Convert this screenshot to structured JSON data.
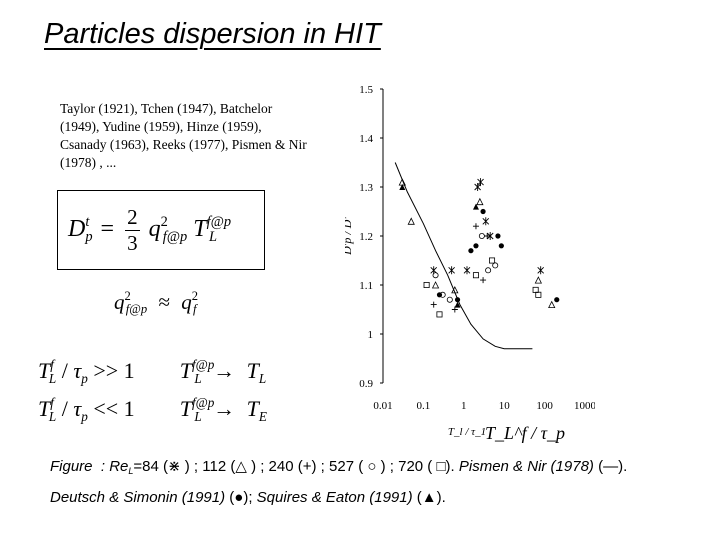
{
  "slide": {
    "title": "Particles dispersion in HIT",
    "references": "Taylor (1921), Tchen (1947), Batchelor (1949), Yudine (1959), Hinze (1959), Csanady (1963), Reeks (1977), Pismen & Nir (1978) , ...",
    "formulas": {
      "main": {
        "lhs_base": "D",
        "lhs_sup": "t",
        "lhs_sub": "p",
        "equals": "=",
        "num": "2",
        "den": "3",
        "q": "q",
        "q_sup": "2",
        "q_sub": "f@p",
        "T": "T",
        "T_sup": "f@p",
        "T_sub": "L"
      },
      "approx": {
        "lhs": "q",
        "lhs_sup": "2",
        "lhs_sub": "f@p",
        "op": "≈",
        "rhs": "q",
        "rhs_sup": "2",
        "rhs_sub": "f"
      },
      "limits": [
        {
          "left": "T",
          "left_sup": "f",
          "left_sub": "L",
          "slash": "/",
          "tau": "τ",
          "tau_sub": "p",
          "rel": ">> 1",
          "arrow_lhs": "T",
          "arrow_lhs_sup": "f@p",
          "arrow_lhs_sub": "L",
          "arrow": "→",
          "rhs": "T",
          "rhs_sub": "L"
        },
        {
          "left": "T",
          "left_sup": "f",
          "left_sub": "L",
          "slash": "/",
          "tau": "τ",
          "tau_sub": "p",
          "rel": "<< 1",
          "arrow_lhs": "T",
          "arrow_lhs_sup": "f@p",
          "arrow_lhs_sub": "L",
          "arrow": "→",
          "rhs": "T",
          "rhs_sub": "E"
        }
      ]
    },
    "caption": {
      "line1": {
        "figure": "Figure",
        "part1": ": Re",
        "part1_sub": "L",
        "part1_rest": "=84 (",
        "sym_star": "⋇",
        "part2": ") ; 112 (",
        "sym_triangle": "△",
        "part3": ") ; 240 (+) ; 527 (",
        "sym_circle": "○",
        "part4": ") ; 720 (",
        "sym_square": "□",
        "part5": ").",
        "ref1": "Pismen & Nir (1978)",
        "part6": "(—)."
      },
      "line2": {
        "ref2": "Deutsch & Simonin (1991)",
        "part7": "(",
        "sym_dot": "●",
        "part8": ");",
        "ref3": "Squires & Eaton (1991)",
        "part9": "(",
        "sym_filled_triangle": "▲",
        "part10": ")."
      }
    }
  },
  "chart_data": {
    "type": "scatter",
    "x_scale": "log",
    "xlim": [
      0.01,
      1000
    ],
    "ylim": [
      0.9,
      1.5
    ],
    "x_ticks": [
      "0.01",
      "0.1",
      "1",
      "10",
      "100",
      "1000"
    ],
    "y_ticks": [
      "0.9",
      "1",
      "1.1",
      "1.2",
      "1.3",
      "1.4",
      "1.5"
    ],
    "ylabel": "D'p / D'",
    "xlabel": "T_L^f / τ_p",
    "xlabel_small": "T_l / τ_1",
    "series": [
      {
        "name": "Pismen & Nir (1978)",
        "marker": "line",
        "points": [
          [
            0.02,
            1.35
          ],
          [
            0.04,
            1.29
          ],
          [
            0.1,
            1.225
          ],
          [
            0.2,
            1.17
          ],
          [
            0.4,
            1.12
          ],
          [
            0.8,
            1.06
          ],
          [
            1.5,
            1.02
          ],
          [
            3,
            0.99
          ],
          [
            6,
            0.975
          ],
          [
            10,
            0.97
          ],
          [
            50,
            0.97
          ]
        ]
      },
      {
        "name": "ReL=84",
        "marker": "star",
        "points": [
          [
            0.18,
            1.13
          ],
          [
            0.5,
            1.13
          ],
          [
            1.2,
            1.13
          ],
          [
            2.2,
            1.3
          ],
          [
            2.6,
            1.31
          ],
          [
            3.5,
            1.23
          ],
          [
            4.5,
            1.2
          ],
          [
            80,
            1.13
          ]
        ]
      },
      {
        "name": "ReL=112",
        "marker": "triangle",
        "points": [
          [
            0.03,
            1.31
          ],
          [
            0.05,
            1.23
          ],
          [
            0.2,
            1.1
          ],
          [
            0.6,
            1.09
          ],
          [
            2.5,
            1.27
          ],
          [
            70,
            1.11
          ],
          [
            150,
            1.06
          ]
        ]
      },
      {
        "name": "ReL=240",
        "marker": "plus",
        "points": [
          [
            0.18,
            1.06
          ],
          [
            0.6,
            1.05
          ],
          [
            2.0,
            1.22
          ],
          [
            3.0,
            1.11
          ],
          [
            3.8,
            1.2
          ]
        ]
      },
      {
        "name": "ReL=527",
        "marker": "circle",
        "points": [
          [
            0.2,
            1.12
          ],
          [
            0.3,
            1.08
          ],
          [
            0.45,
            1.07
          ],
          [
            2.8,
            1.2
          ],
          [
            4.0,
            1.13
          ],
          [
            6.0,
            1.14
          ]
        ]
      },
      {
        "name": "ReL=720",
        "marker": "square",
        "points": [
          [
            0.12,
            1.1
          ],
          [
            0.25,
            1.04
          ],
          [
            2.0,
            1.12
          ],
          [
            5.0,
            1.15
          ],
          [
            60,
            1.09
          ],
          [
            70,
            1.08
          ]
        ]
      },
      {
        "name": "Deutsch & Simonin (1991)",
        "marker": "dot",
        "points": [
          [
            0.25,
            1.08
          ],
          [
            0.7,
            1.07
          ],
          [
            1.5,
            1.17
          ],
          [
            2.0,
            1.18
          ],
          [
            3.0,
            1.25
          ],
          [
            7.0,
            1.2
          ],
          [
            8.5,
            1.18
          ],
          [
            200,
            1.07
          ]
        ]
      },
      {
        "name": "Squires & Eaton (1991)",
        "marker": "filled-triangle",
        "points": [
          [
            0.03,
            1.3
          ],
          [
            0.7,
            1.06
          ],
          [
            2.0,
            1.26
          ]
        ]
      }
    ]
  }
}
